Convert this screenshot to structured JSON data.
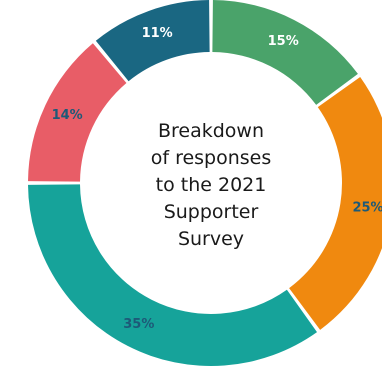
{
  "chart_data": {
    "type": "pie",
    "center_label_lines": [
      "Breakdown",
      "of responses",
      "to the 2021",
      "Supporter",
      "Survey"
    ],
    "slices": [
      {
        "label": "15%",
        "value": 15,
        "color": "#4aa36a",
        "label_color": "#ffffff"
      },
      {
        "label": "25%",
        "value": 25,
        "color": "#f0890f",
        "label_color": "#1d5a78"
      },
      {
        "label": "35%",
        "value": 35,
        "color": "#16a39a",
        "label_color": "#1d5a78"
      },
      {
        "label": "14%",
        "value": 14,
        "color": "#e85d67",
        "label_color": "#1d5a78"
      },
      {
        "label": "11%",
        "value": 11,
        "color": "#1a6782",
        "label_color": "#ffffff"
      }
    ],
    "start_angle_deg": 0,
    "direction": "clockwise",
    "legend": "none"
  }
}
